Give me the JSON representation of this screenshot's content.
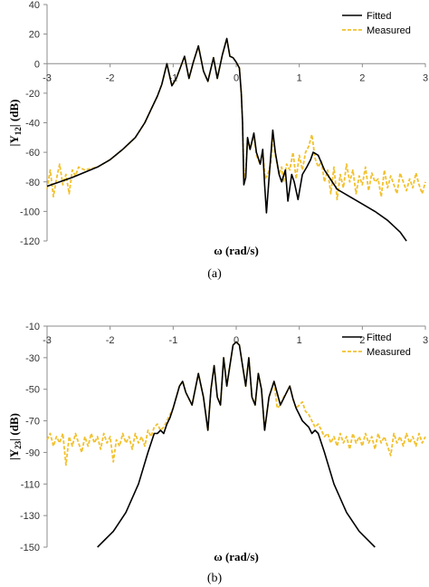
{
  "chart_data": [
    {
      "type": "line",
      "caption": "(a)",
      "xlabel": "ω (rad/s)",
      "ylabel": "|Y12| (dB)",
      "ylabel_main": "|Y",
      "ylabel_sub": "12",
      "ylabel_tail": "| (dB)",
      "xlim": [
        -3,
        3
      ],
      "ylim": [
        -120,
        40
      ],
      "x_ticks": [
        -3,
        -2,
        -1,
        0,
        1,
        2,
        3
      ],
      "y_ticks": [
        40,
        20,
        0,
        -20,
        -40,
        -60,
        -80,
        -100,
        -120
      ],
      "grid": false,
      "legend_position": "top-right",
      "legend": [
        "Fitted",
        "Measured"
      ],
      "colors": {
        "fitted": "#000000",
        "measured": "#f2c12e"
      },
      "series": [
        {
          "name": "Fitted",
          "style": "solid",
          "x": [
            -3.0,
            -2.6,
            -2.2,
            -2.0,
            -1.8,
            -1.6,
            -1.45,
            -1.35,
            -1.25,
            -1.18,
            -1.1,
            -1.02,
            -0.95,
            -0.88,
            -0.82,
            -0.75,
            -0.68,
            -0.6,
            -0.52,
            -0.45,
            -0.36,
            -0.3,
            -0.22,
            -0.15,
            -0.1,
            -0.05,
            0.0,
            0.05,
            0.08,
            0.1,
            0.12,
            0.15,
            0.18,
            0.22,
            0.28,
            0.32,
            0.38,
            0.42,
            0.45,
            0.48,
            0.52,
            0.58,
            0.62,
            0.68,
            0.72,
            0.78,
            0.82,
            0.88,
            0.92,
            0.98,
            1.05,
            1.12,
            1.18,
            1.22,
            1.3,
            1.4,
            1.6,
            1.8,
            2.0,
            2.2,
            2.4,
            2.6,
            2.7
          ],
          "y": [
            -83,
            -77,
            -70,
            -65,
            -58,
            -50,
            -40,
            -31,
            -22,
            -14,
            0,
            -15,
            -10,
            -2,
            5,
            -10,
            1,
            12,
            -5,
            -12,
            4,
            -10,
            6,
            17,
            5,
            4,
            1,
            -3,
            -20,
            -40,
            -82,
            -77,
            -50,
            -58,
            -47,
            -60,
            -68,
            -58,
            -82,
            -101,
            -78,
            -45,
            -60,
            -75,
            -80,
            -72,
            -93,
            -75,
            -80,
            -92,
            -75,
            -70,
            -65,
            -60,
            -62,
            -72,
            -85,
            -90,
            -95,
            -100,
            -106,
            -114,
            -120
          ]
        },
        {
          "name": "Measured",
          "style": "dashed",
          "x": [
            -3.0,
            -2.95,
            -2.9,
            -2.85,
            -2.8,
            -2.75,
            -2.7,
            -2.65,
            -2.6,
            -2.55,
            -2.5,
            -2.4,
            -2.2,
            -2.0,
            -1.8,
            -1.6,
            -1.45,
            -1.35,
            -1.25,
            -1.18,
            -1.1,
            -1.02,
            -0.95,
            -0.88,
            -0.82,
            -0.75,
            -0.68,
            -0.6,
            -0.52,
            -0.45,
            -0.36,
            -0.3,
            -0.22,
            -0.15,
            -0.1,
            -0.05,
            0.0,
            0.05,
            0.08,
            0.1,
            0.12,
            0.15,
            0.18,
            0.22,
            0.28,
            0.32,
            0.38,
            0.42,
            0.46,
            0.5,
            0.55,
            0.58,
            0.62,
            0.68,
            0.72,
            0.75,
            0.8,
            0.85,
            0.9,
            0.95,
            1.0,
            1.05,
            1.1,
            1.15,
            1.2,
            1.25,
            1.3,
            1.35,
            1.4,
            1.45,
            1.5,
            1.55,
            1.6,
            1.65,
            1.7,
            1.75,
            1.8,
            1.85,
            1.9,
            1.95,
            2.0,
            2.05,
            2.1,
            2.15,
            2.2,
            2.25,
            2.3,
            2.35,
            2.4,
            2.45,
            2.5,
            2.55,
            2.6,
            2.65,
            2.7,
            2.75,
            2.8,
            2.85,
            2.9,
            2.95,
            3.0
          ],
          "y": [
            -85,
            -72,
            -90,
            -78,
            -68,
            -82,
            -75,
            -88,
            -72,
            -76,
            -70,
            -72,
            -70,
            -65,
            -58,
            -50,
            -40,
            -31,
            -22,
            -14,
            0,
            -15,
            -10,
            -2,
            5,
            -10,
            1,
            12,
            -5,
            -12,
            4,
            -10,
            6,
            17,
            5,
            4,
            1,
            -3,
            -20,
            -40,
            -78,
            -72,
            -52,
            -58,
            -48,
            -62,
            -68,
            -60,
            -78,
            -75,
            -68,
            -48,
            -62,
            -75,
            -70,
            -80,
            -68,
            -72,
            -60,
            -78,
            -62,
            -72,
            -60,
            -56,
            -48,
            -64,
            -70,
            -66,
            -80,
            -72,
            -88,
            -70,
            -92,
            -75,
            -84,
            -68,
            -80,
            -72,
            -88,
            -76,
            -82,
            -70,
            -86,
            -74,
            -80,
            -78,
            -90,
            -72,
            -84,
            -76,
            -82,
            -88,
            -74,
            -80,
            -86,
            -78,
            -84,
            -74,
            -82,
            -88,
            -80
          ]
        }
      ]
    },
    {
      "type": "line",
      "caption": "(b)",
      "xlabel": "ω (rad/s)",
      "ylabel": "|Y23| (dB)",
      "ylabel_main": "|Y",
      "ylabel_sub": "23",
      "ylabel_tail": "| (dB)",
      "xlim": [
        -3,
        3
      ],
      "ylim": [
        -150,
        -10
      ],
      "x_ticks": [
        -3,
        -2,
        -1,
        0,
        1,
        2,
        3
      ],
      "y_ticks": [
        -10,
        -30,
        -50,
        -70,
        -90,
        -110,
        -130,
        -150
      ],
      "grid": false,
      "legend_position": "top-right",
      "legend": [
        "Fitted",
        "Measured"
      ],
      "colors": {
        "fitted": "#000000",
        "measured": "#f2c12e"
      },
      "series": [
        {
          "name": "Fitted",
          "style": "solid",
          "x": [
            -2.2,
            -1.95,
            -1.75,
            -1.55,
            -1.4,
            -1.3,
            -1.25,
            -1.2,
            -1.15,
            -1.1,
            -1.05,
            -1.0,
            -0.95,
            -0.9,
            -0.85,
            -0.8,
            -0.7,
            -0.6,
            -0.52,
            -0.45,
            -0.4,
            -0.35,
            -0.3,
            -0.25,
            -0.2,
            -0.15,
            -0.1,
            -0.05,
            0.0,
            0.05,
            0.1,
            0.15,
            0.2,
            0.25,
            0.3,
            0.35,
            0.4,
            0.45,
            0.52,
            0.6,
            0.7,
            0.8,
            0.85,
            0.9,
            0.95,
            1.0,
            1.05,
            1.1,
            1.15,
            1.2,
            1.25,
            1.3,
            1.4,
            1.55,
            1.75,
            1.95,
            2.2
          ],
          "y": [
            -150,
            -140,
            -128,
            -110,
            -90,
            -78,
            -78,
            -76,
            -78,
            -72,
            -68,
            -62,
            -55,
            -48,
            -45,
            -52,
            -60,
            -40,
            -55,
            -76,
            -50,
            -35,
            -55,
            -60,
            -30,
            -48,
            -35,
            -22,
            -20,
            -22,
            -35,
            -48,
            -30,
            -55,
            -60,
            -40,
            -50,
            -76,
            -55,
            -45,
            -60,
            -52,
            -48,
            -56,
            -62,
            -66,
            -70,
            -72,
            -74,
            -78,
            -76,
            -78,
            -90,
            -110,
            -128,
            -140,
            -150
          ]
        },
        {
          "name": "Measured",
          "style": "dashed",
          "x": [
            -3.0,
            -2.95,
            -2.9,
            -2.85,
            -2.8,
            -2.75,
            -2.7,
            -2.65,
            -2.6,
            -2.55,
            -2.5,
            -2.45,
            -2.4,
            -2.35,
            -2.3,
            -2.25,
            -2.2,
            -2.15,
            -2.1,
            -2.05,
            -2.0,
            -1.95,
            -1.9,
            -1.85,
            -1.8,
            -1.75,
            -1.7,
            -1.65,
            -1.6,
            -1.55,
            -1.5,
            -1.45,
            -1.4,
            -1.35,
            -1.3,
            -1.25,
            -1.2,
            -1.15,
            -1.1,
            -1.05,
            -1.0,
            -0.95,
            -0.9,
            -0.85,
            -0.8,
            -0.7,
            -0.6,
            -0.52,
            -0.45,
            -0.4,
            -0.35,
            -0.3,
            -0.25,
            -0.2,
            -0.15,
            -0.1,
            -0.05,
            0.0,
            0.05,
            0.1,
            0.15,
            0.2,
            0.25,
            0.3,
            0.35,
            0.4,
            0.45,
            0.52,
            0.6,
            0.65,
            0.7,
            0.75,
            0.8,
            0.85,
            0.9,
            0.95,
            1.0,
            1.05,
            1.1,
            1.15,
            1.2,
            1.25,
            1.3,
            1.35,
            1.4,
            1.45,
            1.5,
            1.55,
            1.6,
            1.65,
            1.7,
            1.75,
            1.8,
            1.85,
            1.9,
            1.95,
            2.0,
            2.05,
            2.1,
            2.15,
            2.2,
            2.25,
            2.3,
            2.35,
            2.4,
            2.45,
            2.5,
            2.55,
            2.6,
            2.65,
            2.7,
            2.75,
            2.8,
            2.85,
            2.9,
            2.95,
            3.0
          ],
          "y": [
            -82,
            -78,
            -86,
            -80,
            -84,
            -78,
            -98,
            -80,
            -86,
            -78,
            -84,
            -90,
            -80,
            -86,
            -78,
            -84,
            -80,
            -88,
            -78,
            -84,
            -80,
            -96,
            -82,
            -86,
            -78,
            -84,
            -80,
            -88,
            -78,
            -84,
            -80,
            -86,
            -76,
            -80,
            -74,
            -72,
            -76,
            -74,
            -70,
            -66,
            -62,
            -55,
            -48,
            -45,
            -52,
            -60,
            -40,
            -55,
            -76,
            -50,
            -35,
            -55,
            -60,
            -30,
            -48,
            -35,
            -22,
            -20,
            -22,
            -35,
            -48,
            -30,
            -55,
            -60,
            -40,
            -50,
            -76,
            -55,
            -45,
            -62,
            -60,
            -55,
            -52,
            -48,
            -56,
            -62,
            -60,
            -58,
            -64,
            -66,
            -70,
            -74,
            -72,
            -76,
            -80,
            -78,
            -84,
            -80,
            -86,
            -78,
            -84,
            -80,
            -88,
            -78,
            -84,
            -80,
            -86,
            -78,
            -84,
            -80,
            -88,
            -78,
            -84,
            -80,
            -86,
            -92,
            -78,
            -84,
            -80,
            -86,
            -78,
            -84,
            -80,
            -86,
            -78,
            -84,
            -80
          ]
        }
      ]
    }
  ]
}
